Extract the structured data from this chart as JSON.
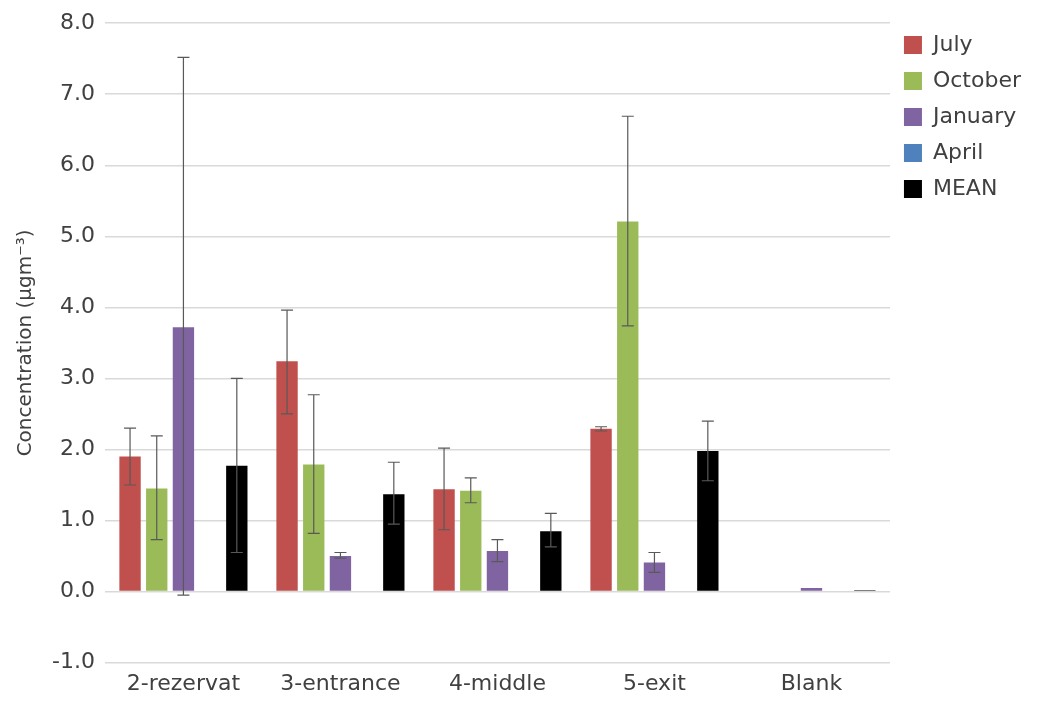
{
  "chart_data": {
    "type": "bar",
    "ylabel": "Concentration (µgm⁻³)",
    "categories": [
      "2-rezervat",
      "3-entrance",
      "4-middle",
      "5-exit",
      "Blank"
    ],
    "series": [
      {
        "name": "July",
        "color": "#c0504d",
        "values": [
          1.9,
          3.24,
          1.44,
          2.29,
          null
        ],
        "errors": [
          [
            1.5,
            2.3
          ],
          [
            2.5,
            3.96
          ],
          [
            0.87,
            2.02
          ],
          [
            2.26,
            2.32
          ],
          null
        ]
      },
      {
        "name": "October",
        "color": "#9bbb59",
        "values": [
          1.45,
          1.79,
          1.42,
          5.21,
          null
        ],
        "errors": [
          [
            0.73,
            2.19
          ],
          [
            0.82,
            2.77
          ],
          [
            1.25,
            1.6
          ],
          [
            3.74,
            6.69
          ],
          null
        ]
      },
      {
        "name": "January",
        "color": "#8064a2",
        "values": [
          3.72,
          0.5,
          0.57,
          0.41,
          0.05
        ],
        "errors": [
          [
            -0.05,
            7.52
          ],
          [
            0.47,
            0.55
          ],
          [
            0.42,
            0.73
          ],
          [
            0.27,
            0.55
          ],
          null
        ]
      },
      {
        "name": "April",
        "color": "#4f81bd",
        "values": [
          null,
          null,
          null,
          null,
          null
        ]
      },
      {
        "name": "MEAN",
        "color": "#000000",
        "values": [
          1.77,
          1.37,
          0.85,
          1.98,
          0.02
        ],
        "errors": [
          [
            0.55,
            3.0
          ],
          [
            0.95,
            1.82
          ],
          [
            0.63,
            1.1
          ],
          [
            1.56,
            2.4
          ],
          null
        ]
      }
    ],
    "ylim": [
      -1,
      8
    ],
    "yticks": [
      {
        "value": -1,
        "label": "-1.0"
      },
      {
        "value": 0,
        "label": "0.0"
      },
      {
        "value": 1,
        "label": "1.0"
      },
      {
        "value": 2,
        "label": "2.0"
      },
      {
        "value": 3,
        "label": "3.0"
      },
      {
        "value": 4,
        "label": "4.0"
      },
      {
        "value": 5,
        "label": "5.0"
      },
      {
        "value": 6,
        "label": "6.0"
      },
      {
        "value": 7,
        "label": "7.0"
      },
      {
        "value": 8,
        "label": "8.0"
      }
    ],
    "grid": "y",
    "legend": "top right"
  }
}
